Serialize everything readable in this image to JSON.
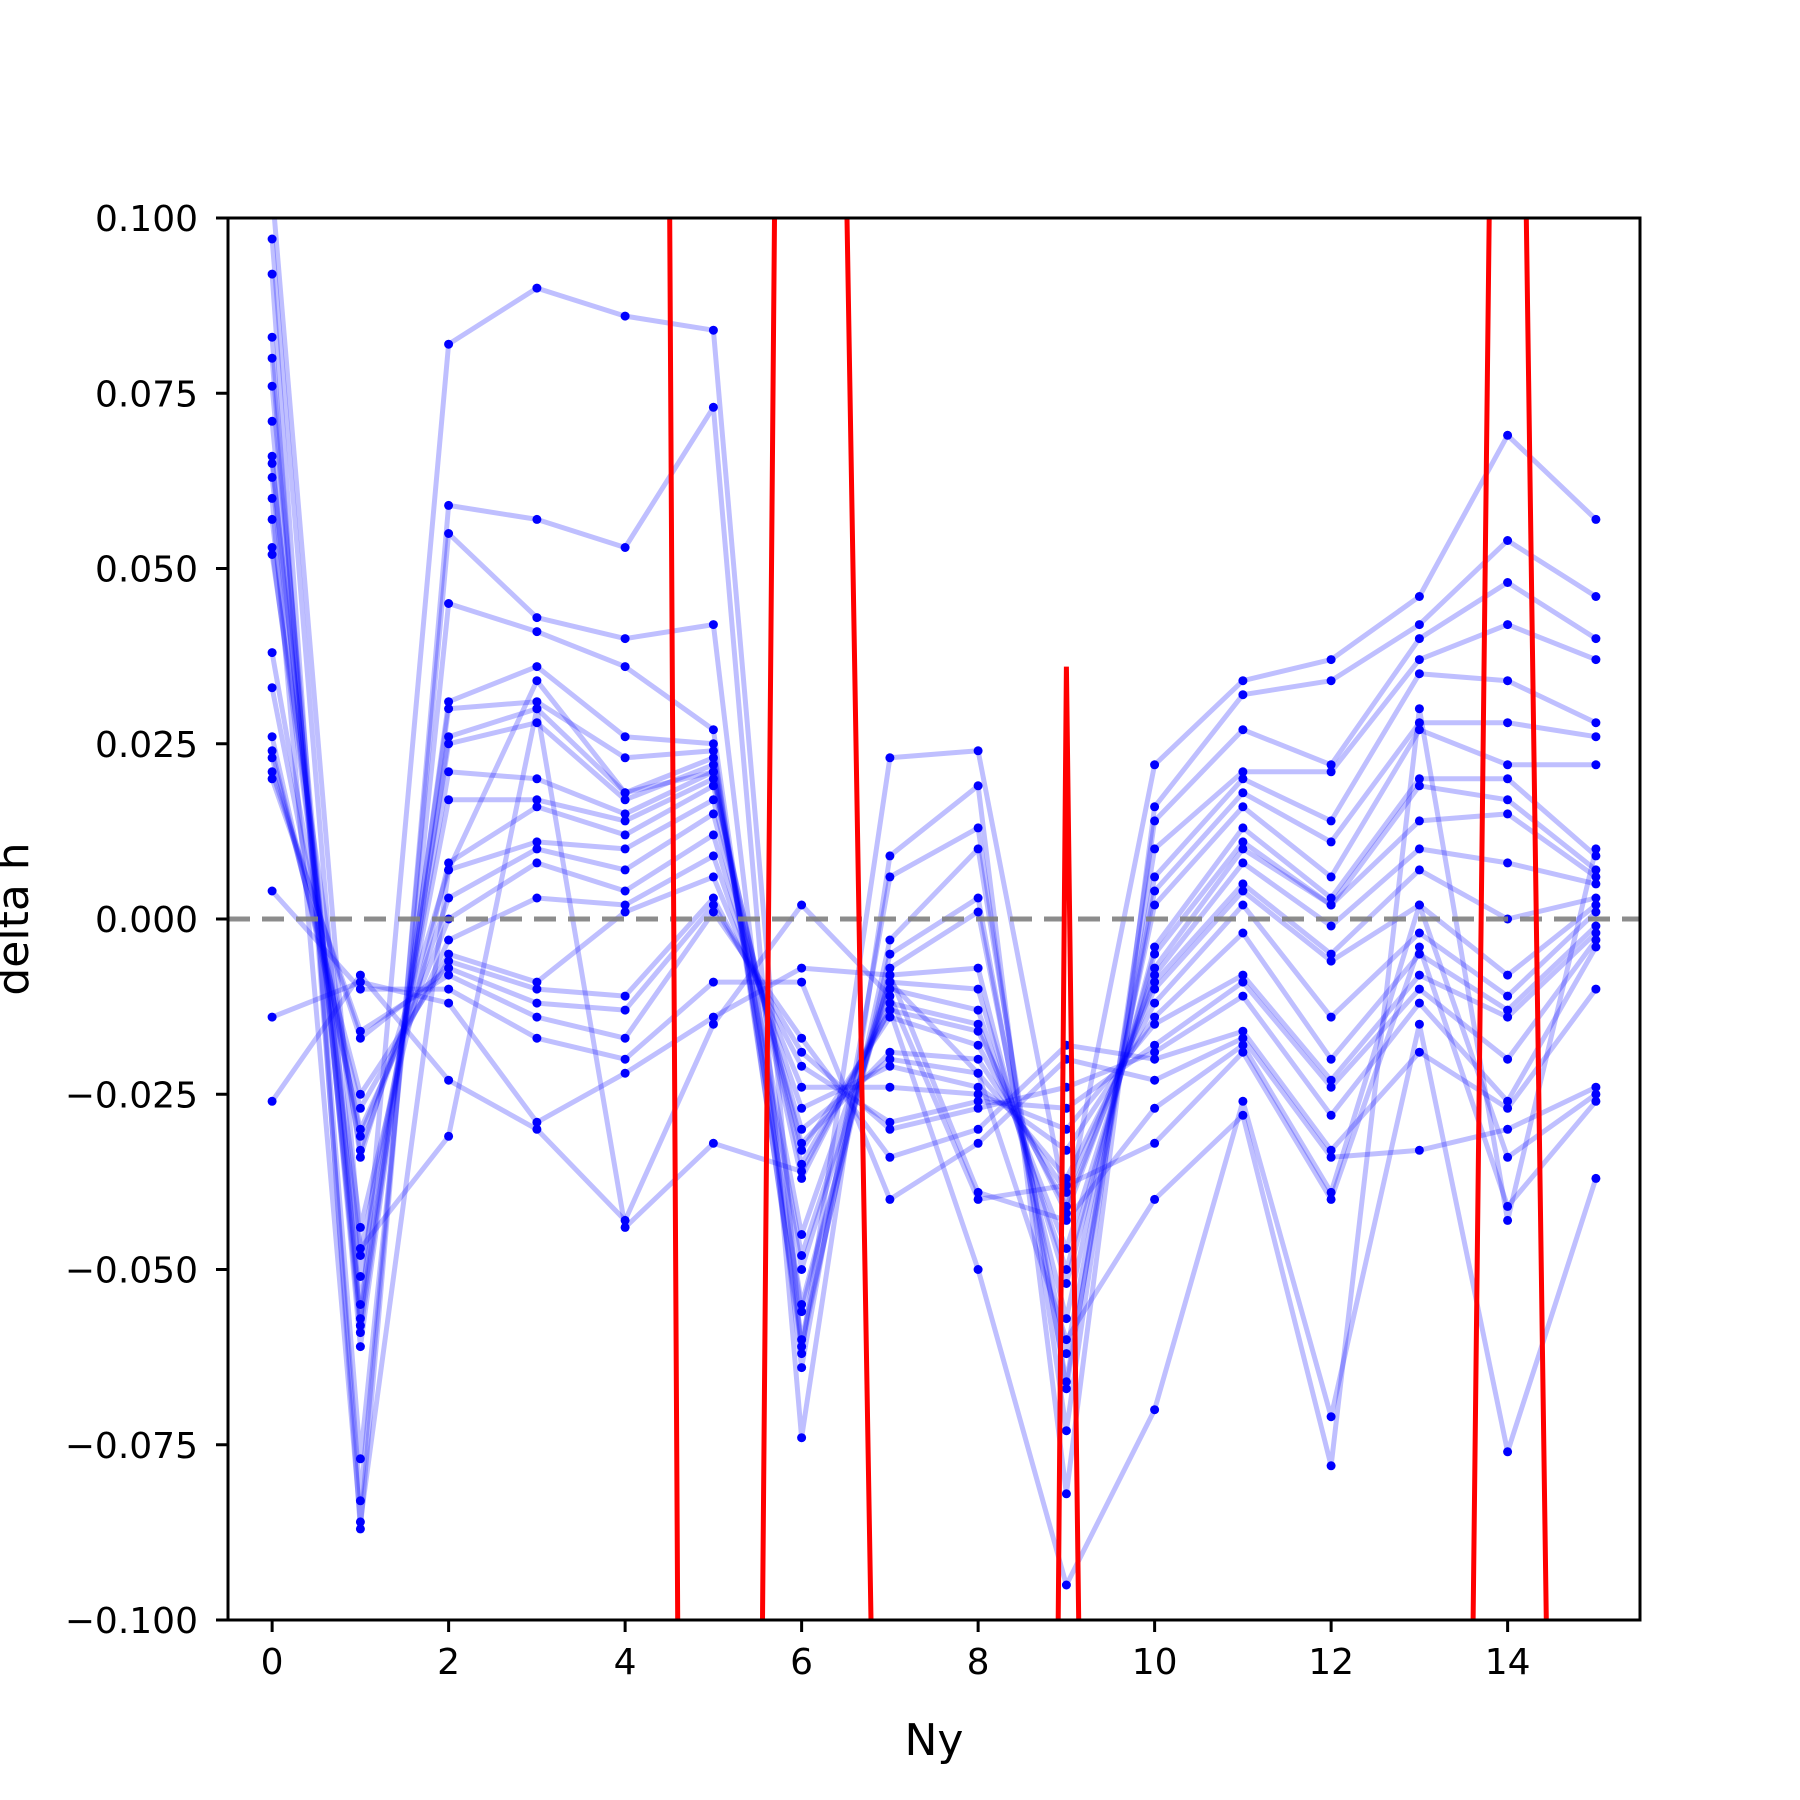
{
  "chart_data": {
    "type": "line",
    "xlabel": "Ny",
    "ylabel": "delta h",
    "xlim": [
      -0.5,
      15.5
    ],
    "ylim": [
      -0.1,
      0.1
    ],
    "x_ticks": [
      0,
      2,
      4,
      6,
      8,
      10,
      12,
      14
    ],
    "y_ticks": [
      -0.1,
      -0.075,
      -0.05,
      -0.025,
      0.0,
      0.025,
      0.05,
      0.075,
      0.1
    ],
    "x_tick_labels": [
      "0",
      "2",
      "4",
      "6",
      "8",
      "10",
      "12",
      "14"
    ],
    "y_tick_labels": [
      "−0.100",
      "−0.075",
      "−0.050",
      "−0.025",
      "0.000",
      "0.025",
      "0.050",
      "0.075",
      "0.100"
    ],
    "grid": false,
    "reference_line": {
      "y": 0.0,
      "style": "dashed",
      "color": "#808080"
    },
    "colors": {
      "series": "#0000ff",
      "highlight": "#ff0000",
      "reference": "#808080"
    },
    "x": [
      0,
      1,
      2,
      3,
      4,
      5,
      6,
      7,
      8,
      9,
      10,
      11,
      12,
      13,
      14,
      15
    ],
    "series": [
      {
        "values": [
          0.097,
          -0.058,
          0.082,
          0.09,
          0.086,
          0.084,
          -0.062,
          0.023,
          0.024,
          -0.041,
          0.022,
          0.034,
          0.037,
          0.046,
          0.069,
          0.057
        ]
      },
      {
        "values": [
          0.092,
          -0.087,
          0.059,
          0.057,
          0.053,
          0.073,
          -0.074,
          0.009,
          0.019,
          -0.082,
          0.016,
          0.032,
          0.034,
          0.042,
          0.054,
          0.046
        ]
      },
      {
        "values": [
          0.083,
          -0.083,
          0.055,
          0.043,
          0.04,
          0.042,
          -0.064,
          0.006,
          0.013,
          -0.073,
          0.014,
          0.027,
          0.022,
          0.04,
          0.048,
          0.04
        ]
      },
      {
        "values": [
          0.08,
          -0.077,
          0.045,
          0.041,
          0.036,
          0.027,
          -0.061,
          -0.003,
          0.01,
          -0.067,
          0.01,
          0.021,
          0.021,
          0.037,
          0.042,
          0.037
        ]
      },
      {
        "values": [
          0.076,
          -0.061,
          0.031,
          0.036,
          0.026,
          0.025,
          -0.06,
          -0.005,
          0.003,
          -0.066,
          0.006,
          0.02,
          0.014,
          0.035,
          0.034,
          0.028
        ]
      },
      {
        "values": [
          0.071,
          -0.059,
          0.03,
          0.031,
          0.023,
          0.024,
          -0.056,
          -0.007,
          0.001,
          -0.062,
          0.004,
          0.018,
          0.011,
          0.028,
          0.028,
          0.026
        ]
      },
      {
        "values": [
          0.066,
          -0.057,
          0.026,
          0.03,
          0.018,
          0.023,
          -0.055,
          -0.008,
          -0.007,
          -0.057,
          0.002,
          0.016,
          0.006,
          0.027,
          0.022,
          0.022
        ]
      },
      {
        "values": [
          0.065,
          -0.055,
          0.025,
          0.028,
          0.017,
          0.022,
          -0.05,
          -0.009,
          -0.01,
          -0.052,
          -0.004,
          0.013,
          0.003,
          0.02,
          0.02,
          0.009
        ]
      },
      {
        "values": [
          0.063,
          -0.051,
          0.021,
          0.02,
          0.015,
          0.021,
          -0.048,
          -0.01,
          -0.013,
          -0.05,
          -0.005,
          0.011,
          0.002,
          0.019,
          0.017,
          0.007
        ]
      },
      {
        "values": [
          0.057,
          -0.048,
          0.017,
          0.017,
          0.014,
          0.02,
          -0.037,
          -0.012,
          -0.015,
          -0.047,
          -0.007,
          0.01,
          0.002,
          0.014,
          0.015,
          0.006
        ]
      },
      {
        "values": [
          0.053,
          -0.044,
          0.008,
          0.016,
          0.012,
          0.019,
          -0.035,
          -0.013,
          -0.016,
          -0.042,
          -0.008,
          0.008,
          -0.001,
          0.01,
          0.008,
          0.005
        ]
      },
      {
        "values": [
          0.052,
          -0.034,
          0.007,
          0.011,
          0.01,
          0.017,
          -0.033,
          -0.014,
          -0.018,
          -0.041,
          -0.009,
          0.005,
          -0.005,
          0.007,
          0.0,
          0.003
        ]
      },
      {
        "values": [
          0.038,
          -0.033,
          0.003,
          0.01,
          0.007,
          0.015,
          -0.032,
          -0.019,
          -0.02,
          -0.039,
          -0.01,
          0.004,
          -0.006,
          0.002,
          -0.008,
          0.002
        ]
      },
      {
        "values": [
          0.033,
          -0.031,
          0.0,
          0.008,
          0.004,
          0.012,
          -0.03,
          -0.02,
          -0.022,
          -0.037,
          -0.012,
          0.002,
          -0.014,
          -0.002,
          -0.011,
          0.001
        ]
      },
      {
        "values": [
          0.026,
          -0.03,
          -0.003,
          0.003,
          0.002,
          0.009,
          -0.027,
          -0.021,
          -0.024,
          -0.033,
          -0.014,
          -0.002,
          -0.02,
          -0.005,
          -0.013,
          -0.001
        ]
      },
      {
        "values": [
          0.024,
          -0.027,
          -0.005,
          -0.009,
          0.001,
          0.006,
          -0.024,
          -0.024,
          -0.025,
          -0.03,
          -0.015,
          -0.008,
          -0.023,
          -0.008,
          -0.014,
          -0.002
        ]
      },
      {
        "values": [
          0.023,
          -0.025,
          -0.006,
          -0.01,
          -0.011,
          0.003,
          -0.021,
          -0.029,
          -0.026,
          -0.027,
          -0.018,
          -0.009,
          -0.024,
          -0.01,
          -0.02,
          -0.003
        ]
      },
      {
        "values": [
          0.021,
          -0.017,
          -0.007,
          -0.012,
          -0.013,
          0.002,
          -0.019,
          -0.03,
          -0.027,
          -0.024,
          -0.019,
          -0.011,
          -0.028,
          -0.012,
          -0.026,
          -0.004
        ]
      },
      {
        "values": [
          0.02,
          -0.016,
          -0.008,
          -0.014,
          -0.017,
          0.001,
          -0.017,
          -0.034,
          -0.03,
          -0.018,
          -0.02,
          -0.016,
          -0.033,
          -0.019,
          -0.027,
          -0.01
        ]
      },
      {
        "values": [
          0.004,
          -0.01,
          -0.01,
          -0.017,
          -0.02,
          -0.009,
          -0.009,
          -0.04,
          -0.032,
          -0.02,
          -0.023,
          -0.017,
          -0.034,
          -0.033,
          -0.03,
          -0.024
        ]
      },
      {
        "values": [
          -0.014,
          -0.009,
          -0.012,
          -0.029,
          -0.022,
          -0.014,
          -0.007,
          -0.008,
          -0.039,
          -0.043,
          -0.027,
          -0.018,
          -0.039,
          0.002,
          -0.034,
          -0.025
        ]
      },
      {
        "values": [
          -0.026,
          -0.008,
          -0.023,
          -0.03,
          -0.043,
          -0.015,
          0.002,
          -0.011,
          -0.04,
          -0.038,
          -0.032,
          -0.019,
          -0.04,
          -0.004,
          -0.041,
          -0.026
        ]
      },
      {
        "values": [
          0.104,
          -0.047,
          -0.031,
          0.03,
          -0.044,
          -0.032,
          -0.036,
          -0.013,
          -0.05,
          -0.095,
          -0.07,
          -0.026,
          -0.071,
          -0.015,
          -0.076,
          -0.037
        ]
      },
      {
        "values": [
          0.06,
          -0.086,
          0.007,
          0.034,
          0.018,
          0.021,
          -0.045,
          -0.009,
          -0.022,
          -0.06,
          -0.04,
          -0.028,
          -0.078,
          0.03,
          -0.043,
          0.01
        ]
      }
    ],
    "red_series": {
      "x": [
        4.5,
        4.6,
        5.55,
        5.7,
        6.5,
        6.8,
        8.9,
        9.0,
        9.15,
        13.6,
        13.8,
        14.2,
        14.45
      ],
      "values": [
        0.11,
        -0.11,
        -0.11,
        0.11,
        0.11,
        -0.11,
        -0.11,
        0.036,
        -0.11,
        -0.11,
        0.11,
        0.11,
        -0.11
      ]
    }
  }
}
